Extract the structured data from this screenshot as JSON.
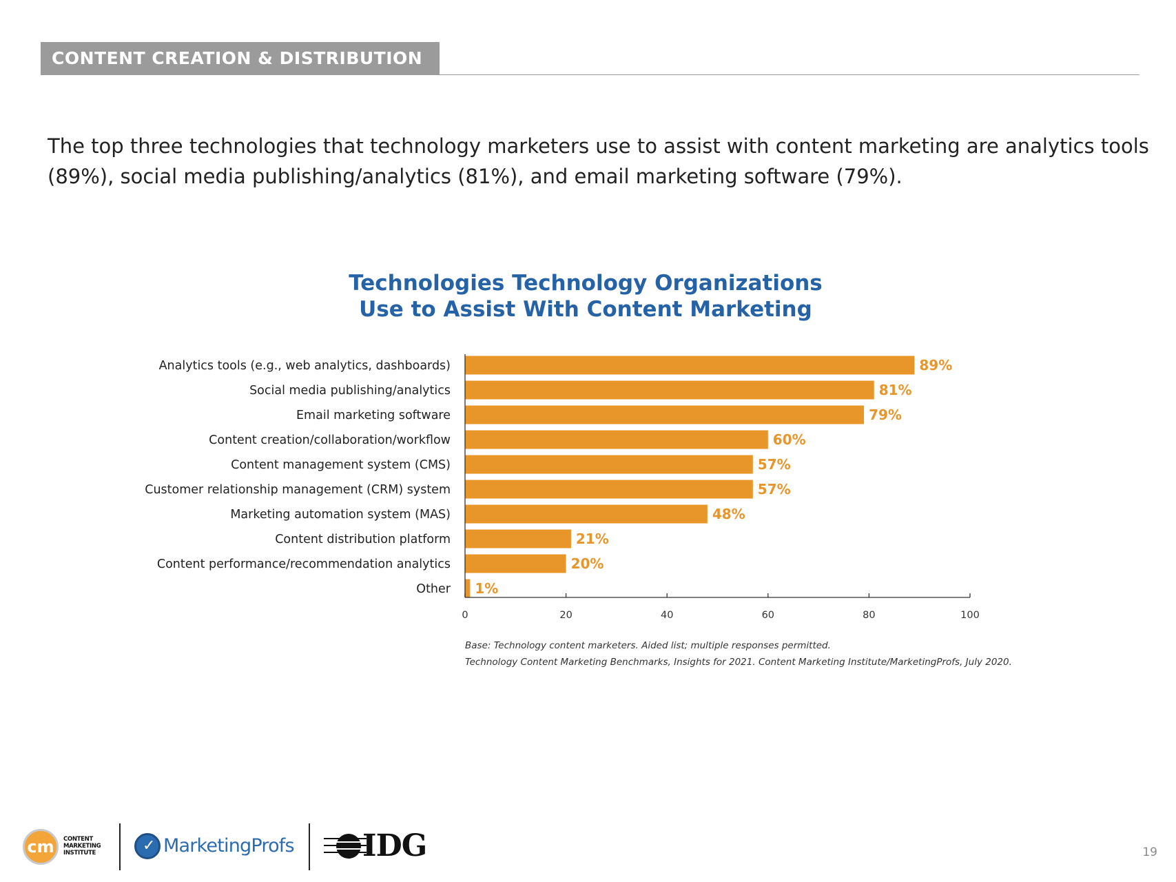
{
  "section": {
    "title": "CONTENT CREATION & DISTRIBUTION"
  },
  "summary": "The top three technologies that technology marketers use to assist with content marketing are analytics tools (89%), social media publishing/analytics (81%), and email marketing software (79%).",
  "chart_data": {
    "type": "bar",
    "orientation": "horizontal",
    "title_lines": [
      "Technologies Technology Organizations",
      "Use to Assist With Content Marketing"
    ],
    "categories": [
      "Analytics tools (e.g., web analytics, dashboards)",
      "Social media publishing/analytics",
      "Email marketing software",
      "Content creation/collaboration/workflow",
      "Content management system (CMS)",
      "Customer relationship management (CRM) system",
      "Marketing automation system (MAS)",
      "Content distribution platform",
      "Content performance/recommendation analytics",
      "Other"
    ],
    "values": [
      89,
      81,
      79,
      60,
      57,
      57,
      48,
      21,
      20,
      1
    ],
    "value_labels": [
      "89%",
      "81%",
      "79%",
      "60%",
      "57%",
      "57%",
      "48%",
      "21%",
      "20%",
      "1%"
    ],
    "xlim": [
      0,
      100
    ],
    "xticks": [
      0,
      20,
      40,
      60,
      80,
      100
    ],
    "grid": false,
    "bar_color": "#e8952a"
  },
  "notes": {
    "base": "Base: Technology content marketers. Aided list; multiple responses permitted.",
    "source": "Technology Content Marketing Benchmarks, Insights for 2021. Content Marketing Institute/MarketingProfs, July 2020."
  },
  "footer": {
    "cmi_mark": "cm",
    "cmi_name": "CONTENT MARKETING INSTITUTE",
    "marketingprofs_name": "MarketingProfs",
    "idg_name": "IDG",
    "page_number": "19"
  }
}
